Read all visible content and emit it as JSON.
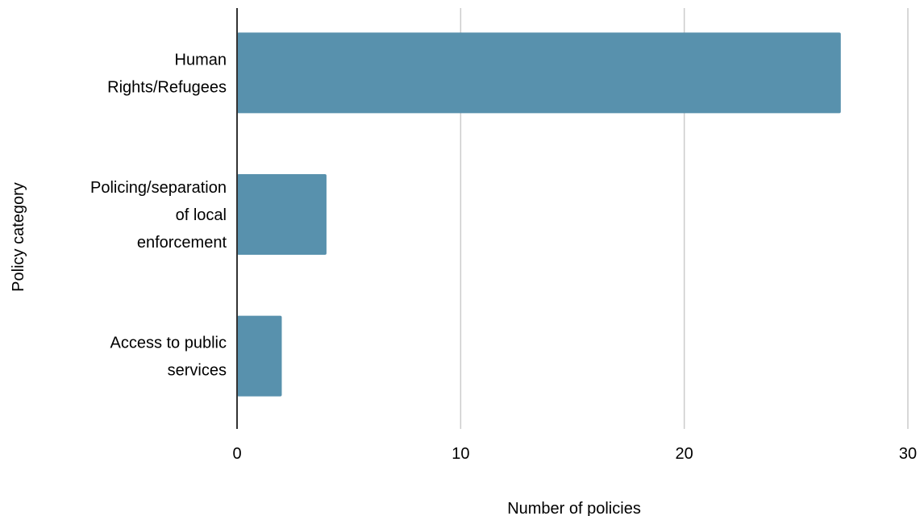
{
  "chart_data": {
    "type": "bar",
    "orientation": "horizontal",
    "categories": [
      [
        "Human",
        "Rights/Refugees"
      ],
      [
        "Policing/separation",
        "of local",
        "enforcement"
      ],
      [
        "Access to public",
        "services"
      ]
    ],
    "values": [
      27,
      4,
      2
    ],
    "xlabel": "Number of policies",
    "ylabel": "Policy category",
    "xlim": [
      0,
      30
    ],
    "xticks": [
      0,
      10,
      20,
      30
    ],
    "grid": "vertical",
    "bar_color": "#5891ad",
    "grid_color": "#cccccc",
    "axis_color": "#333333"
  }
}
